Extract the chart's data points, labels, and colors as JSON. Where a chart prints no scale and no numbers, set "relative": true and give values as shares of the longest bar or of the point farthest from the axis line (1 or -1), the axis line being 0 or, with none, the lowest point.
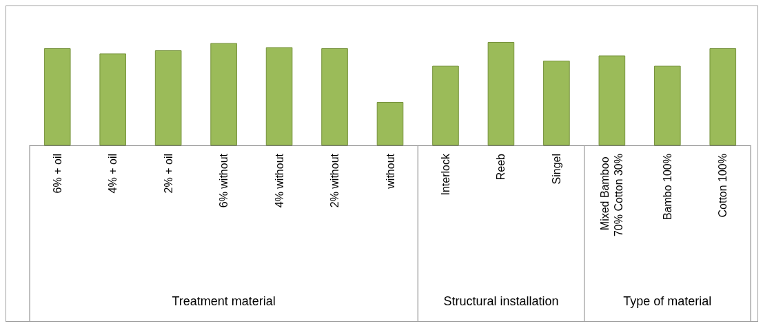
{
  "chart_data": {
    "type": "bar",
    "relative": true,
    "color": "#9bbb59",
    "categories": [
      "6% + oil",
      "4% + oil",
      "2% + oil",
      "6% without",
      "4% without",
      "2% without",
      "without",
      "Interlock",
      "Reeb",
      "Singel",
      "Mixed Bamboo 70% Cotton 30%",
      "Bambo 100%",
      "Cotton 100%"
    ],
    "values": [
      0.94,
      0.89,
      0.92,
      0.99,
      0.95,
      0.94,
      0.42,
      0.77,
      1,
      0.82,
      0.87,
      0.77,
      0.94
    ],
    "annotations": [
      "Treatment material",
      "Structural installation",
      "Type of material"
    ]
  }
}
